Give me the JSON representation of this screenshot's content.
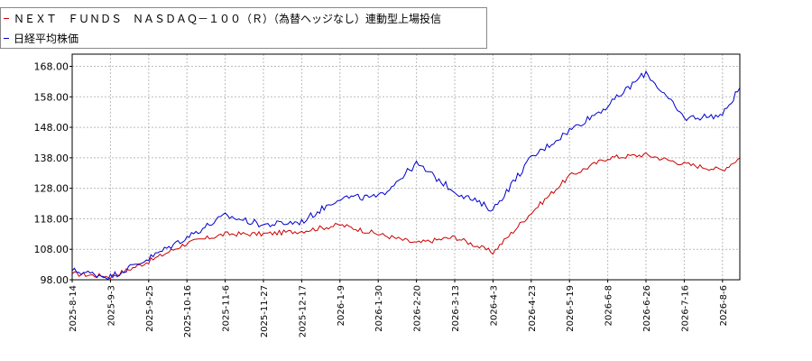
{
  "chart_data": {
    "type": "line",
    "title": "",
    "xlabel": "",
    "ylabel": "",
    "ylim": [
      98,
      172
    ],
    "yticks": [
      "98.00",
      "108.00",
      "118.00",
      "128.00",
      "138.00",
      "148.00",
      "158.00",
      "168.00"
    ],
    "yticks_values": [
      98,
      108,
      118,
      128,
      138,
      148,
      158,
      168
    ],
    "xticks": [
      "2025-8-14",
      "2025-9-3",
      "2025-9-25",
      "2025-10-16",
      "2025-11-6",
      "2025-11-27",
      "2025-12-17",
      "2026-1-9",
      "2026-1-30",
      "2026-2-20",
      "2026-3-13",
      "2026-4-3",
      "2026-4-23",
      "2026-5-19",
      "2026-6-8",
      "2026-6-26",
      "2026-7-16",
      "2026-8-6"
    ],
    "grid": true,
    "legend_position": "top-left",
    "series": [
      {
        "name": "ＮＥＸＴ　ＦＵＮＤＳ　ＮＡＳＤＡＱ－１００（Ｒ）（為替ヘッジなし）連動型上場投信",
        "color": "#cc0000",
        "x": [
          "2025-8-14",
          "2025-9-3",
          "2025-9-25",
          "2025-10-16",
          "2025-11-6",
          "2025-11-27",
          "2025-12-17",
          "2026-1-9",
          "2026-1-30",
          "2026-2-20",
          "2026-3-13",
          "2026-4-3",
          "2026-4-23",
          "2026-5-19",
          "2026-6-8",
          "2026-6-26",
          "2026-7-16",
          "2026-8-6",
          "2026-8-10"
        ],
        "values": [
          100,
          99,
          104,
          110,
          113,
          113,
          114,
          116,
          113,
          110,
          112,
          107,
          120,
          132,
          138,
          139,
          136,
          134,
          138
        ]
      },
      {
        "name": "日経平均株価",
        "color": "#0000cc",
        "x": [
          "2025-8-14",
          "2025-9-3",
          "2025-9-25",
          "2025-10-16",
          "2025-11-6",
          "2025-11-27",
          "2025-12-17",
          "2026-1-9",
          "2026-1-30",
          "2026-2-20",
          "2026-3-13",
          "2026-4-3",
          "2026-4-23",
          "2026-5-19",
          "2026-6-8",
          "2026-6-26",
          "2026-7-16",
          "2026-8-6",
          "2026-8-10"
        ],
        "values": [
          101,
          99,
          105,
          112,
          119,
          116,
          117,
          125,
          125,
          136,
          127,
          121,
          138,
          147,
          155,
          166,
          151,
          152,
          161
        ]
      }
    ]
  }
}
